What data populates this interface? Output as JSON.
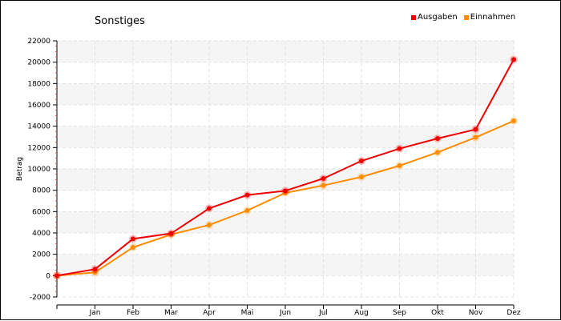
{
  "chart_data": {
    "type": "line",
    "title": "Sonstiges",
    "ylabel": "Betrag",
    "xlabel": "",
    "categories": [
      "",
      "Jan",
      "Feb",
      "Mar",
      "Apr",
      "Mai",
      "Jun",
      "Jul",
      "Aug",
      "Sep",
      "Okt",
      "Nov",
      "Dez"
    ],
    "ylim": [
      -2000,
      22000
    ],
    "yticks": [
      -2000,
      0,
      2000,
      4000,
      6000,
      8000,
      10000,
      12000,
      14000,
      16000,
      18000,
      20000,
      22000
    ],
    "grid": true,
    "legend_position": "top-right",
    "series": [
      {
        "name": "Ausgaben",
        "color": "#ee0000",
        "values": [
          0,
          600,
          3450,
          3950,
          6300,
          7550,
          7950,
          9100,
          10750,
          11900,
          12850,
          13700,
          20250
        ]
      },
      {
        "name": "Einnahmen",
        "color": "#ff8c00",
        "values": [
          0,
          300,
          2650,
          3850,
          4750,
          6100,
          7750,
          8450,
          9250,
          10300,
          11550,
          12950,
          14500
        ]
      }
    ]
  }
}
